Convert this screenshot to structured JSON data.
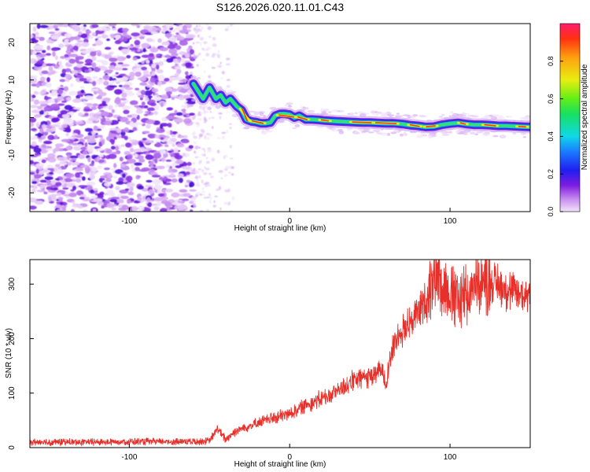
{
  "title": "S126.2026.020.11.01.C43",
  "chart_data": [
    {
      "type": "heatmap",
      "title": "S126.2026.020.11.01.C43",
      "xlabel": "Height of straight line (km)",
      "ylabel": "Frequency (Hz)",
      "xlim": [
        -162,
        150
      ],
      "ylim": [
        -25,
        25
      ],
      "xticks": [
        -100,
        0,
        100
      ],
      "yticks": [
        -20,
        -10,
        0,
        10,
        20
      ],
      "noise_region_end_km": -60,
      "ridge": {
        "x": [
          -60,
          -57,
          -54,
          -50,
          -46,
          -43,
          -40,
          -37,
          -33,
          -30,
          -27,
          -24,
          -21,
          -18,
          -15,
          -12,
          -9,
          -6,
          -3,
          0,
          3,
          6,
          10,
          14,
          18,
          22,
          26,
          30,
          35,
          40,
          45,
          50,
          55,
          60,
          65,
          70,
          75,
          80,
          85,
          90,
          95,
          100,
          105,
          110,
          115,
          120,
          125,
          130,
          135,
          140,
          145,
          150
        ],
        "y": [
          9,
          7,
          5,
          8,
          5,
          6,
          4,
          5,
          3,
          2,
          -0.5,
          -1,
          -1.2,
          -1.5,
          -1.5,
          -1.3,
          0.5,
          1,
          1,
          0.8,
          0,
          0.5,
          -0.5,
          -0.5,
          -0.6,
          -0.8,
          -0.9,
          -1,
          -1.1,
          -1.2,
          -1.3,
          -1.3,
          -1.4,
          -1.5,
          -1.5,
          -1.7,
          -2,
          -2.2,
          -2.5,
          -2.4,
          -1.9,
          -1.6,
          -1.4,
          -1.7,
          -1.9,
          -1.9,
          -2,
          -2.2,
          -2.2,
          -2.3,
          -2.4,
          -2.5
        ]
      },
      "colorbar": {
        "label": "Normalized spectral amplitude",
        "range": [
          0,
          1
        ],
        "ticks": [
          "0.0",
          "0.2",
          "0.4",
          "0.6",
          "0.8"
        ]
      }
    },
    {
      "type": "line",
      "xlabel": "Height of straight line (km)",
      "ylabel": "SNR (10 * v/v)",
      "xlim": [
        -162,
        150
      ],
      "ylim": [
        0,
        345
      ],
      "xticks": [
        -100,
        0,
        100
      ],
      "yticks": [
        0,
        100,
        200,
        300
      ],
      "color": "#e8302a",
      "trend": {
        "x": [
          -162,
          -130,
          -100,
          -70,
          -50,
          -45,
          -40,
          -35,
          -30,
          -25,
          -20,
          -15,
          -10,
          -5,
          0,
          5,
          10,
          15,
          20,
          25,
          30,
          35,
          40,
          45,
          50,
          55,
          58,
          60,
          62,
          65,
          70,
          75,
          80,
          85,
          88,
          90,
          95,
          100,
          105,
          110,
          115,
          120,
          125,
          130,
          135,
          140,
          145,
          150
        ],
        "y": [
          10,
          10,
          11,
          11,
          12,
          35,
          15,
          28,
          35,
          40,
          45,
          50,
          55,
          58,
          62,
          70,
          78,
          85,
          90,
          95,
          105,
          115,
          122,
          128,
          132,
          135,
          145,
          118,
          155,
          190,
          215,
          230,
          250,
          270,
          300,
          318,
          305,
          285,
          270,
          280,
          300,
          305,
          305,
          300,
          290,
          285,
          280,
          285
        ]
      }
    }
  ]
}
